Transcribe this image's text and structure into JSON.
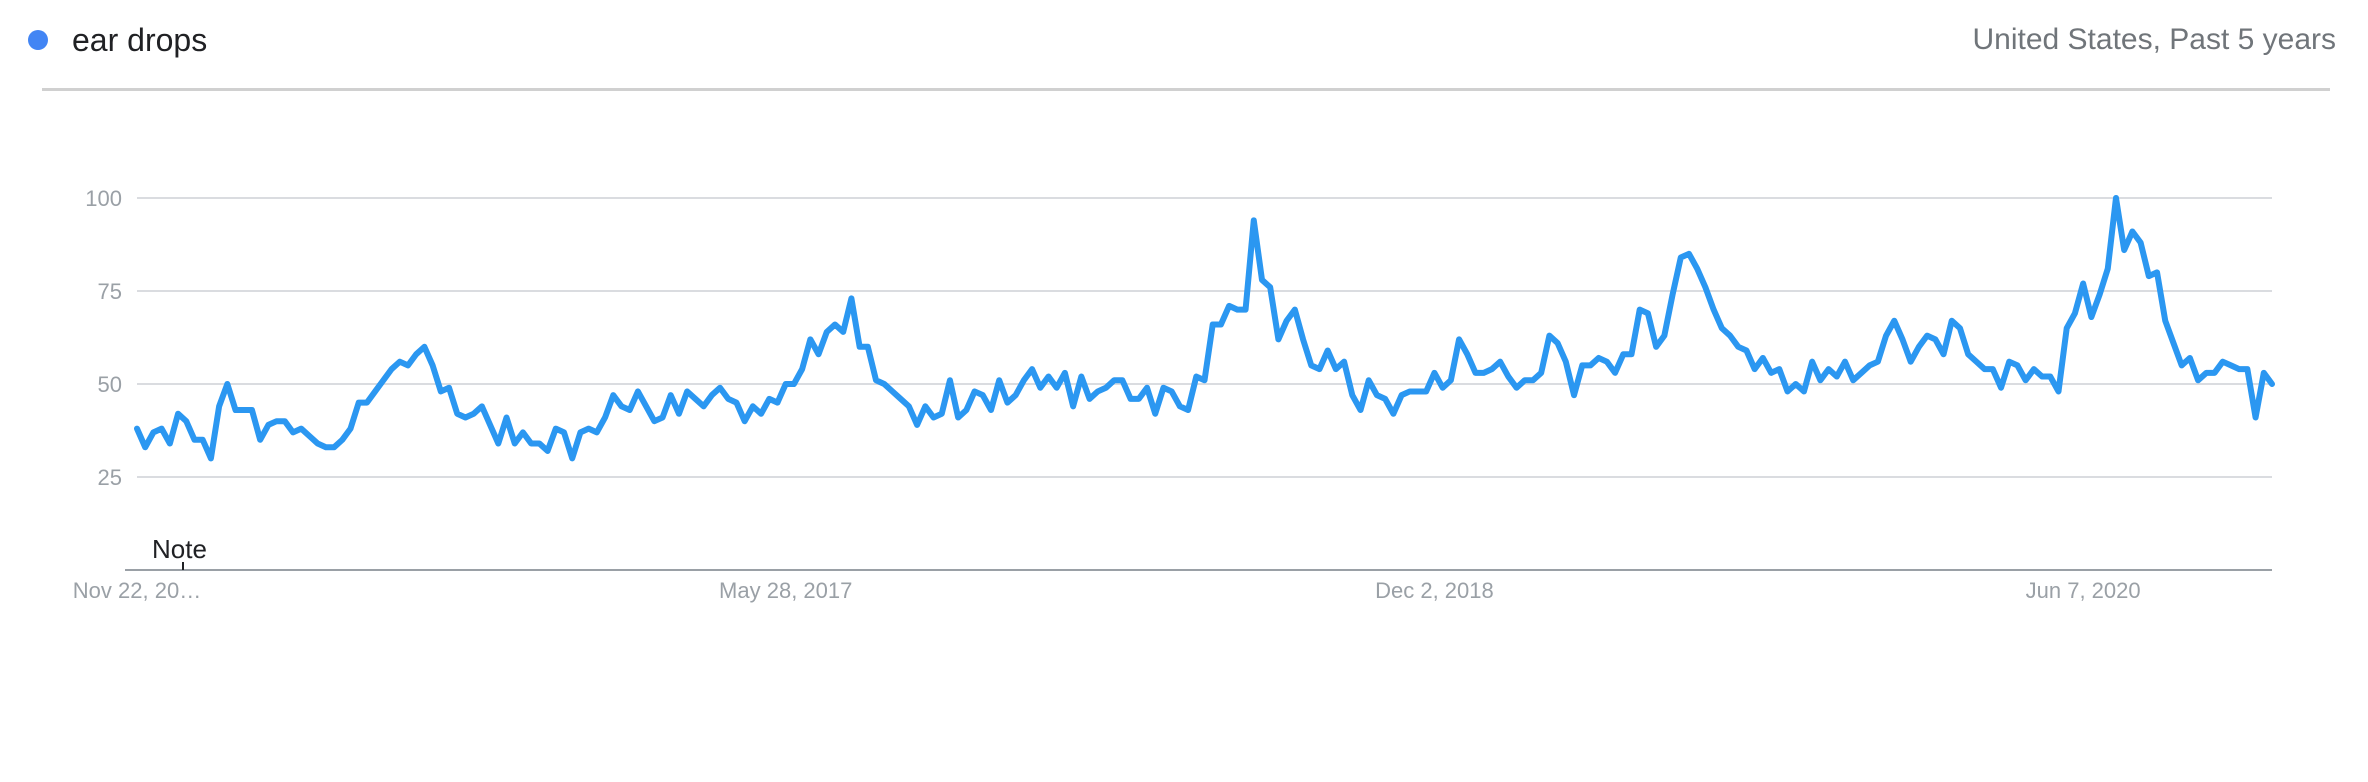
{
  "header": {
    "term": "ear drops",
    "scope": "United States, Past 5 years"
  },
  "colors": {
    "series": "#2b97f1",
    "legend_dot": "#4285f4",
    "grid": "#dadce0",
    "axis": "#9aa0a6",
    "text_muted": "#9aa0a6"
  },
  "note": {
    "label": "Note"
  },
  "chart_data": {
    "type": "line",
    "title": "",
    "xlabel": "",
    "ylabel": "",
    "ylim": [
      0,
      100
    ],
    "yticks": [
      "25",
      "50",
      "75",
      "100"
    ],
    "grid": true,
    "x_ticks": [
      {
        "label": "Nov 22, 20…",
        "index": 0
      },
      {
        "label": "May 28, 2017",
        "index": 79
      },
      {
        "label": "Dec 2, 2018",
        "index": 158
      },
      {
        "label": "Jun 7, 2020",
        "index": 237
      }
    ],
    "series": [
      {
        "name": "ear drops",
        "values": [
          38,
          33,
          37,
          38,
          34,
          42,
          40,
          35,
          35,
          30,
          44,
          50,
          43,
          43,
          43,
          35,
          39,
          40,
          40,
          37,
          38,
          36,
          34,
          33,
          33,
          35,
          38,
          45,
          45,
          48,
          51,
          54,
          56,
          55,
          58,
          60,
          55,
          48,
          49,
          42,
          41,
          42,
          44,
          39,
          34,
          41,
          34,
          37,
          34,
          34,
          32,
          38,
          37,
          30,
          37,
          38,
          37,
          41,
          47,
          44,
          43,
          48,
          44,
          40,
          41,
          47,
          42,
          48,
          46,
          44,
          47,
          49,
          46,
          45,
          40,
          44,
          42,
          46,
          45,
          50,
          50,
          54,
          62,
          58,
          64,
          66,
          64,
          73,
          60,
          60,
          51,
          50,
          48,
          46,
          44,
          39,
          44,
          41,
          42,
          51,
          41,
          43,
          48,
          47,
          43,
          51,
          45,
          47,
          51,
          54,
          49,
          52,
          49,
          53,
          44,
          52,
          46,
          48,
          49,
          51,
          51,
          46,
          46,
          49,
          42,
          49,
          48,
          44,
          43,
          52,
          51,
          66,
          66,
          71,
          70,
          70,
          94,
          78,
          76,
          62,
          67,
          70,
          62,
          55,
          54,
          59,
          54,
          56,
          47,
          43,
          51,
          47,
          46,
          42,
          47,
          48,
          48,
          48,
          53,
          49,
          51,
          62,
          58,
          53,
          53,
          54,
          56,
          52,
          49,
          51,
          51,
          53,
          63,
          61,
          56,
          47,
          55,
          55,
          57,
          56,
          53,
          58,
          58,
          70,
          69,
          60,
          63,
          74,
          84,
          85,
          81,
          76,
          70,
          65,
          63,
          60,
          59,
          54,
          57,
          53,
          54,
          48,
          50,
          48,
          56,
          51,
          54,
          52,
          56,
          51,
          53,
          55,
          56,
          63,
          67,
          62,
          56,
          60,
          63,
          62,
          58,
          67,
          65,
          58,
          56,
          54,
          54,
          49,
          56,
          55,
          51,
          54,
          52,
          52,
          48,
          65,
          69,
          77,
          68,
          74,
          81,
          100,
          86,
          91,
          88,
          79,
          80,
          67,
          61,
          55,
          57,
          51,
          53,
          53,
          56,
          55,
          54,
          54,
          41,
          53,
          50
        ]
      }
    ]
  }
}
